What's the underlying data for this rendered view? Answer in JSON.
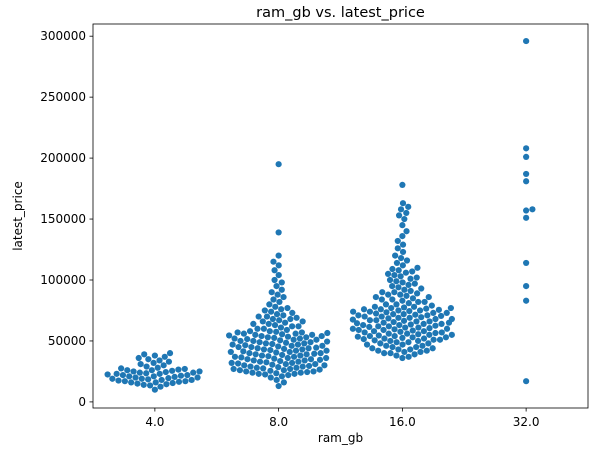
{
  "chart_data": {
    "type": "scatter",
    "subtype": "swarm",
    "title": "ram_gb vs. latest_price",
    "xlabel": "ram_gb",
    "ylabel": "latest_price",
    "categories": [
      "4.0",
      "8.0",
      "16.0",
      "32.0"
    ],
    "ylim": [
      -5000,
      310000
    ],
    "yticks": [
      0,
      50000,
      100000,
      150000,
      200000,
      250000,
      300000
    ],
    "ytick_labels": [
      "0",
      "50000",
      "100000",
      "150000",
      "200000",
      "250000",
      "300000"
    ],
    "grid": false,
    "legend": "none",
    "marker_color": "#1f77b4",
    "series": [
      {
        "category": "4.0",
        "values": [
          10000,
          12500,
          13500,
          14000,
          14500,
          15000,
          15500,
          16000,
          16000,
          16500,
          17000,
          17000,
          17500,
          18000,
          18000,
          18500,
          19000,
          19000,
          19500,
          20000,
          20000,
          20500,
          21000,
          21000,
          21500,
          22000,
          22000,
          22500,
          23000,
          23000,
          23500,
          24000,
          24000,
          24500,
          25000,
          25000,
          25500,
          26000,
          26000,
          26500,
          27000,
          27500,
          28000,
          29000,
          30000,
          31000,
          32000,
          33000,
          34000,
          35000,
          36000,
          37000,
          38000,
          39000,
          40000
        ]
      },
      {
        "category": "8.0",
        "values": [
          13000,
          16000,
          18000,
          20000,
          21000,
          22000,
          22500,
          23000,
          23000,
          23500,
          24000,
          24000,
          24500,
          25000,
          25000,
          25500,
          26000,
          26000,
          26500,
          27000,
          27000,
          27500,
          28000,
          28000,
          28500,
          29000,
          29000,
          29500,
          30000,
          30000,
          30500,
          31000,
          31000,
          31500,
          32000,
          32000,
          32500,
          33000,
          33000,
          33500,
          34000,
          34000,
          34500,
          35000,
          35000,
          35500,
          36000,
          36000,
          36500,
          37000,
          37000,
          37500,
          38000,
          38000,
          38500,
          39000,
          39000,
          39500,
          40000,
          40000,
          40500,
          41000,
          41000,
          41500,
          42000,
          42000,
          42500,
          43000,
          43000,
          43500,
          44000,
          44000,
          44500,
          45000,
          45000,
          45500,
          46000,
          46000,
          46500,
          47000,
          47000,
          47500,
          48000,
          48000,
          48500,
          49000,
          49000,
          49500,
          50000,
          50000,
          50500,
          51000,
          51000,
          51500,
          52000,
          52000,
          52500,
          53000,
          53000,
          53500,
          54000,
          54000,
          54500,
          55000,
          55000,
          55500,
          56000,
          56000,
          56500,
          57000,
          57000,
          57500,
          58000,
          58000,
          59000,
          60000,
          60000,
          61000,
          62000,
          62000,
          63000,
          64000,
          64000,
          65000,
          66000,
          66000,
          67000,
          68000,
          68000,
          69000,
          70000,
          70000,
          71000,
          72000,
          73000,
          74000,
          75000,
          76000,
          77000,
          78000,
          80000,
          82000,
          84000,
          86000,
          88000,
          90000,
          92000,
          95000,
          98000,
          100000,
          104000,
          108000,
          112000,
          115000,
          120000,
          139000,
          195000
        ]
      },
      {
        "category": "16.0",
        "values": [
          36000,
          37000,
          38000,
          39000,
          40000,
          40000,
          41000,
          41000,
          42000,
          42000,
          43000,
          43000,
          44000,
          44000,
          45000,
          45000,
          46000,
          46000,
          47000,
          47000,
          48000,
          48000,
          49000,
          49000,
          50000,
          50000,
          50500,
          51000,
          51000,
          51500,
          52000,
          52000,
          52500,
          53000,
          53000,
          53500,
          54000,
          54000,
          54500,
          55000,
          55000,
          55500,
          56000,
          56000,
          56500,
          57000,
          57000,
          57500,
          58000,
          58000,
          58500,
          59000,
          59000,
          59500,
          60000,
          60000,
          60500,
          61000,
          61000,
          61500,
          62000,
          62000,
          62500,
          63000,
          63000,
          63500,
          64000,
          64000,
          64500,
          65000,
          65000,
          65500,
          66000,
          66000,
          66500,
          67000,
          67000,
          67500,
          68000,
          68000,
          68500,
          69000,
          69000,
          69500,
          70000,
          70000,
          70500,
          71000,
          71000,
          71500,
          72000,
          72000,
          72500,
          73000,
          73000,
          73500,
          74000,
          74000,
          74500,
          75000,
          75000,
          75500,
          76000,
          76000,
          76500,
          77000,
          77000,
          77500,
          78000,
          78000,
          79000,
          80000,
          80000,
          81000,
          82000,
          82000,
          83000,
          84000,
          84000,
          85000,
          86000,
          86000,
          87000,
          88000,
          88000,
          89000,
          90000,
          90000,
          91000,
          92000,
          93000,
          94000,
          95000,
          96000,
          97000,
          98000,
          99000,
          100000,
          101000,
          102000,
          103000,
          104000,
          105000,
          106000,
          107000,
          108000,
          109000,
          110000,
          112000,
          114000,
          116000,
          118000,
          120000,
          123000,
          126000,
          129000,
          132000,
          136000,
          140000,
          145000,
          150000,
          153000,
          155000,
          158000,
          160000,
          163000,
          178000
        ]
      },
      {
        "category": "32.0",
        "values": [
          17000,
          83000,
          95000,
          114000,
          151000,
          157000,
          158000,
          181000,
          187000,
          201000,
          208000,
          296000
        ]
      }
    ]
  }
}
